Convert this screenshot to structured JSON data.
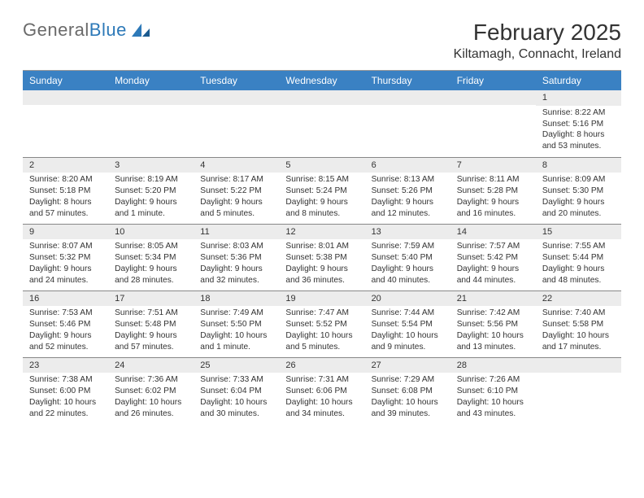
{
  "logo": {
    "word1": "General",
    "word2": "Blue"
  },
  "title": "February 2025",
  "location": "Kiltamagh, Connacht, Ireland",
  "colors": {
    "header_bg": "#3a81c3",
    "header_text": "#ffffff",
    "daynum_bg": "#ececec",
    "border": "#888888",
    "logo_gray": "#6a6a6a",
    "logo_blue": "#2d79b8"
  },
  "weekdays": [
    "Sunday",
    "Monday",
    "Tuesday",
    "Wednesday",
    "Thursday",
    "Friday",
    "Saturday"
  ],
  "weeks": [
    [
      {
        "day": "",
        "sunrise": "",
        "sunset": "",
        "daylight1": "",
        "daylight2": ""
      },
      {
        "day": "",
        "sunrise": "",
        "sunset": "",
        "daylight1": "",
        "daylight2": ""
      },
      {
        "day": "",
        "sunrise": "",
        "sunset": "",
        "daylight1": "",
        "daylight2": ""
      },
      {
        "day": "",
        "sunrise": "",
        "sunset": "",
        "daylight1": "",
        "daylight2": ""
      },
      {
        "day": "",
        "sunrise": "",
        "sunset": "",
        "daylight1": "",
        "daylight2": ""
      },
      {
        "day": "",
        "sunrise": "",
        "sunset": "",
        "daylight1": "",
        "daylight2": ""
      },
      {
        "day": "1",
        "sunrise": "Sunrise: 8:22 AM",
        "sunset": "Sunset: 5:16 PM",
        "daylight1": "Daylight: 8 hours",
        "daylight2": "and 53 minutes."
      }
    ],
    [
      {
        "day": "2",
        "sunrise": "Sunrise: 8:20 AM",
        "sunset": "Sunset: 5:18 PM",
        "daylight1": "Daylight: 8 hours",
        "daylight2": "and 57 minutes."
      },
      {
        "day": "3",
        "sunrise": "Sunrise: 8:19 AM",
        "sunset": "Sunset: 5:20 PM",
        "daylight1": "Daylight: 9 hours",
        "daylight2": "and 1 minute."
      },
      {
        "day": "4",
        "sunrise": "Sunrise: 8:17 AM",
        "sunset": "Sunset: 5:22 PM",
        "daylight1": "Daylight: 9 hours",
        "daylight2": "and 5 minutes."
      },
      {
        "day": "5",
        "sunrise": "Sunrise: 8:15 AM",
        "sunset": "Sunset: 5:24 PM",
        "daylight1": "Daylight: 9 hours",
        "daylight2": "and 8 minutes."
      },
      {
        "day": "6",
        "sunrise": "Sunrise: 8:13 AM",
        "sunset": "Sunset: 5:26 PM",
        "daylight1": "Daylight: 9 hours",
        "daylight2": "and 12 minutes."
      },
      {
        "day": "7",
        "sunrise": "Sunrise: 8:11 AM",
        "sunset": "Sunset: 5:28 PM",
        "daylight1": "Daylight: 9 hours",
        "daylight2": "and 16 minutes."
      },
      {
        "day": "8",
        "sunrise": "Sunrise: 8:09 AM",
        "sunset": "Sunset: 5:30 PM",
        "daylight1": "Daylight: 9 hours",
        "daylight2": "and 20 minutes."
      }
    ],
    [
      {
        "day": "9",
        "sunrise": "Sunrise: 8:07 AM",
        "sunset": "Sunset: 5:32 PM",
        "daylight1": "Daylight: 9 hours",
        "daylight2": "and 24 minutes."
      },
      {
        "day": "10",
        "sunrise": "Sunrise: 8:05 AM",
        "sunset": "Sunset: 5:34 PM",
        "daylight1": "Daylight: 9 hours",
        "daylight2": "and 28 minutes."
      },
      {
        "day": "11",
        "sunrise": "Sunrise: 8:03 AM",
        "sunset": "Sunset: 5:36 PM",
        "daylight1": "Daylight: 9 hours",
        "daylight2": "and 32 minutes."
      },
      {
        "day": "12",
        "sunrise": "Sunrise: 8:01 AM",
        "sunset": "Sunset: 5:38 PM",
        "daylight1": "Daylight: 9 hours",
        "daylight2": "and 36 minutes."
      },
      {
        "day": "13",
        "sunrise": "Sunrise: 7:59 AM",
        "sunset": "Sunset: 5:40 PM",
        "daylight1": "Daylight: 9 hours",
        "daylight2": "and 40 minutes."
      },
      {
        "day": "14",
        "sunrise": "Sunrise: 7:57 AM",
        "sunset": "Sunset: 5:42 PM",
        "daylight1": "Daylight: 9 hours",
        "daylight2": "and 44 minutes."
      },
      {
        "day": "15",
        "sunrise": "Sunrise: 7:55 AM",
        "sunset": "Sunset: 5:44 PM",
        "daylight1": "Daylight: 9 hours",
        "daylight2": "and 48 minutes."
      }
    ],
    [
      {
        "day": "16",
        "sunrise": "Sunrise: 7:53 AM",
        "sunset": "Sunset: 5:46 PM",
        "daylight1": "Daylight: 9 hours",
        "daylight2": "and 52 minutes."
      },
      {
        "day": "17",
        "sunrise": "Sunrise: 7:51 AM",
        "sunset": "Sunset: 5:48 PM",
        "daylight1": "Daylight: 9 hours",
        "daylight2": "and 57 minutes."
      },
      {
        "day": "18",
        "sunrise": "Sunrise: 7:49 AM",
        "sunset": "Sunset: 5:50 PM",
        "daylight1": "Daylight: 10 hours",
        "daylight2": "and 1 minute."
      },
      {
        "day": "19",
        "sunrise": "Sunrise: 7:47 AM",
        "sunset": "Sunset: 5:52 PM",
        "daylight1": "Daylight: 10 hours",
        "daylight2": "and 5 minutes."
      },
      {
        "day": "20",
        "sunrise": "Sunrise: 7:44 AM",
        "sunset": "Sunset: 5:54 PM",
        "daylight1": "Daylight: 10 hours",
        "daylight2": "and 9 minutes."
      },
      {
        "day": "21",
        "sunrise": "Sunrise: 7:42 AM",
        "sunset": "Sunset: 5:56 PM",
        "daylight1": "Daylight: 10 hours",
        "daylight2": "and 13 minutes."
      },
      {
        "day": "22",
        "sunrise": "Sunrise: 7:40 AM",
        "sunset": "Sunset: 5:58 PM",
        "daylight1": "Daylight: 10 hours",
        "daylight2": "and 17 minutes."
      }
    ],
    [
      {
        "day": "23",
        "sunrise": "Sunrise: 7:38 AM",
        "sunset": "Sunset: 6:00 PM",
        "daylight1": "Daylight: 10 hours",
        "daylight2": "and 22 minutes."
      },
      {
        "day": "24",
        "sunrise": "Sunrise: 7:36 AM",
        "sunset": "Sunset: 6:02 PM",
        "daylight1": "Daylight: 10 hours",
        "daylight2": "and 26 minutes."
      },
      {
        "day": "25",
        "sunrise": "Sunrise: 7:33 AM",
        "sunset": "Sunset: 6:04 PM",
        "daylight1": "Daylight: 10 hours",
        "daylight2": "and 30 minutes."
      },
      {
        "day": "26",
        "sunrise": "Sunrise: 7:31 AM",
        "sunset": "Sunset: 6:06 PM",
        "daylight1": "Daylight: 10 hours",
        "daylight2": "and 34 minutes."
      },
      {
        "day": "27",
        "sunrise": "Sunrise: 7:29 AM",
        "sunset": "Sunset: 6:08 PM",
        "daylight1": "Daylight: 10 hours",
        "daylight2": "and 39 minutes."
      },
      {
        "day": "28",
        "sunrise": "Sunrise: 7:26 AM",
        "sunset": "Sunset: 6:10 PM",
        "daylight1": "Daylight: 10 hours",
        "daylight2": "and 43 minutes."
      },
      {
        "day": "",
        "sunrise": "",
        "sunset": "",
        "daylight1": "",
        "daylight2": ""
      }
    ]
  ]
}
